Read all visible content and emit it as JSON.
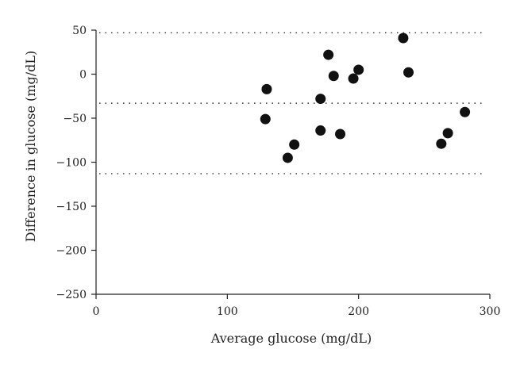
{
  "chart_data": {
    "type": "scatter",
    "xlabel": "Average glucose (mg/dL)",
    "ylabel": "Difference in glucose (mg/dL)",
    "xlim": [
      0,
      300
    ],
    "ylim": [
      -250,
      50
    ],
    "xticks": [
      0,
      100,
      200,
      300
    ],
    "yticks": [
      50,
      0,
      -50,
      -100,
      -150,
      -200,
      -250
    ],
    "xtick_labels": [
      "0",
      "100",
      "200",
      "300"
    ],
    "ytick_labels": [
      "50",
      "0",
      "−50",
      "−100",
      "−150",
      "−200",
      "−250"
    ],
    "reference_lines": [
      47,
      -33,
      -113
    ],
    "grid": false,
    "point_color": "#111111",
    "points": [
      {
        "x": 130,
        "y": -17
      },
      {
        "x": 129,
        "y": -51
      },
      {
        "x": 151,
        "y": -80
      },
      {
        "x": 146,
        "y": -95
      },
      {
        "x": 171,
        "y": -28
      },
      {
        "x": 171,
        "y": -64
      },
      {
        "x": 177,
        "y": 22
      },
      {
        "x": 181,
        "y": -2
      },
      {
        "x": 186,
        "y": -68
      },
      {
        "x": 196,
        "y": -5
      },
      {
        "x": 200,
        "y": 5
      },
      {
        "x": 234,
        "y": 41
      },
      {
        "x": 238,
        "y": 2
      },
      {
        "x": 263,
        "y": -79
      },
      {
        "x": 268,
        "y": -67
      },
      {
        "x": 281,
        "y": -43
      }
    ]
  }
}
